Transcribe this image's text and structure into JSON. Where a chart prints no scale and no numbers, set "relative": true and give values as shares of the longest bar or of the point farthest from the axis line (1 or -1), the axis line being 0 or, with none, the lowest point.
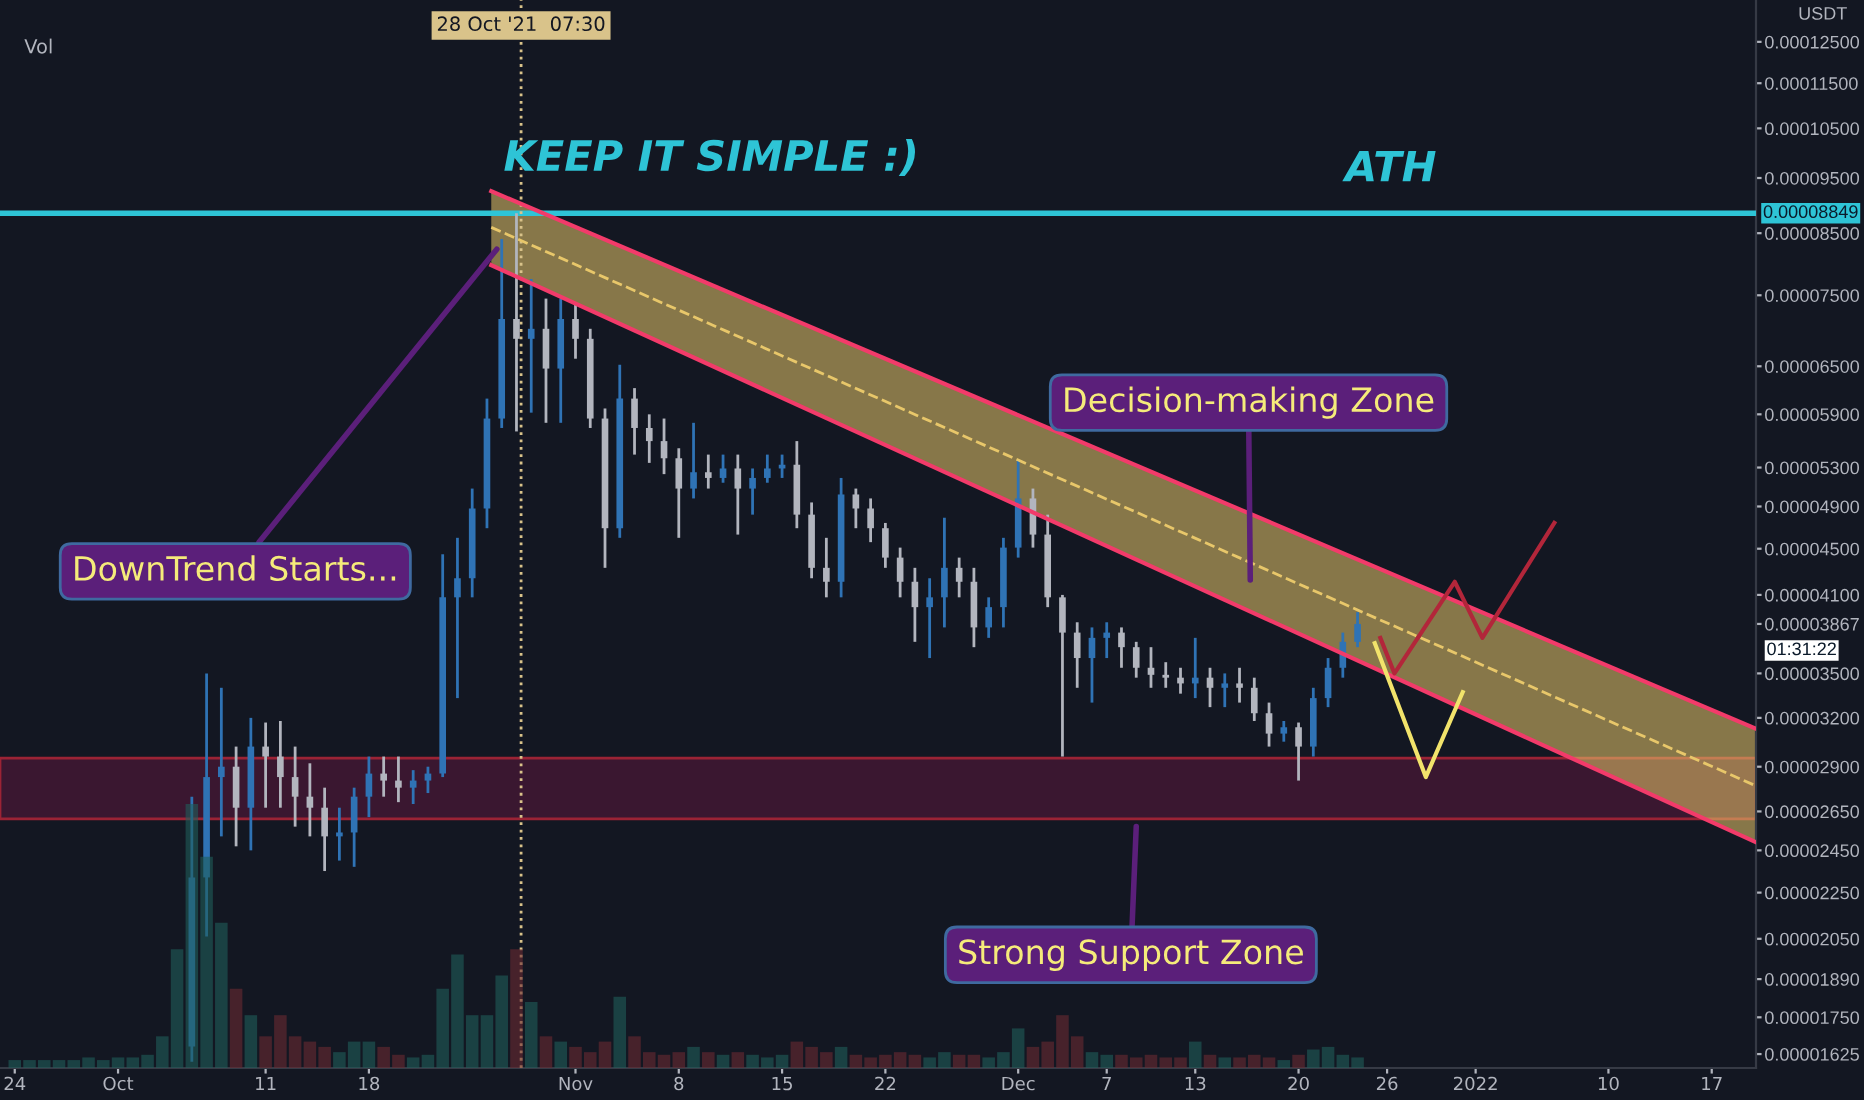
{
  "chart_data": [
    {
      "type": "candlestick",
      "log": true,
      "ylabel": "USDT",
      "xlim": [
        "2021-09-23",
        "2022-01-20"
      ],
      "ylim": [
        1.58e-05,
        0.000136
      ],
      "xticks": [
        {
          "value": "2021-09-24",
          "label": "24"
        },
        {
          "value": "2021-10-01",
          "label": "Oct"
        },
        {
          "value": "2021-10-11",
          "label": "11"
        },
        {
          "value": "2021-10-18",
          "label": "18"
        },
        {
          "value": "2021-11-01",
          "label": "Nov"
        },
        {
          "value": "2021-11-08",
          "label": "8"
        },
        {
          "value": "2021-11-15",
          "label": "15"
        },
        {
          "value": "2021-11-22",
          "label": "22"
        },
        {
          "value": "2021-12-01",
          "label": "Dec"
        },
        {
          "value": "2021-12-07",
          "label": "7"
        },
        {
          "value": "2021-12-13",
          "label": "13"
        },
        {
          "value": "2021-12-20",
          "label": "20"
        },
        {
          "value": "2021-12-26",
          "label": "26"
        },
        {
          "value": "2022-01-01",
          "label": "2022"
        },
        {
          "value": "2022-01-10",
          "label": "10"
        },
        {
          "value": "2022-01-17",
          "label": "17"
        }
      ],
      "yticks": [
        {
          "value": 1.625e-05,
          "label": "0.00001625"
        },
        {
          "value": 1.75e-05,
          "label": "0.00001750"
        },
        {
          "value": 1.89e-05,
          "label": "0.00001890"
        },
        {
          "value": 2.05e-05,
          "label": "0.00002050"
        },
        {
          "value": 2.25e-05,
          "label": "0.00002250"
        },
        {
          "value": 2.45e-05,
          "label": "0.00002450"
        },
        {
          "value": 2.65e-05,
          "label": "0.00002650"
        },
        {
          "value": 2.9e-05,
          "label": "0.00002900"
        },
        {
          "value": 3.2e-05,
          "label": "0.00003200"
        },
        {
          "value": 3.5e-05,
          "label": "0.00003500"
        },
        {
          "value": 3.867e-05,
          "label": "0.00003867"
        },
        {
          "value": 4.1e-05,
          "label": "0.00004100"
        },
        {
          "value": 4.5e-05,
          "label": "0.00004500"
        },
        {
          "value": 4.9e-05,
          "label": "0.00004900"
        },
        {
          "value": 5.3e-05,
          "label": "0.00005300"
        },
        {
          "value": 5.9e-05,
          "label": "0.00005900"
        },
        {
          "value": 6.5e-05,
          "label": "0.00006500"
        },
        {
          "value": 7.5e-05,
          "label": "0.00007500"
        },
        {
          "value": 8.5e-05,
          "label": "0.00008500"
        },
        {
          "value": 9.5e-05,
          "label": "0.00009500"
        },
        {
          "value": 0.000105,
          "label": "0.00010500"
        },
        {
          "value": 0.000115,
          "label": "0.00011500"
        },
        {
          "value": 0.000125,
          "label": "0.00012500"
        }
      ],
      "x": [
        "2021-10-06",
        "2021-10-07",
        "2021-10-08",
        "2021-10-09",
        "2021-10-10",
        "2021-10-11",
        "2021-10-12",
        "2021-10-13",
        "2021-10-14",
        "2021-10-15",
        "2021-10-16",
        "2021-10-17",
        "2021-10-18",
        "2021-10-19",
        "2021-10-20",
        "2021-10-21",
        "2021-10-22",
        "2021-10-23",
        "2021-10-24",
        "2021-10-25",
        "2021-10-26",
        "2021-10-27",
        "2021-10-28",
        "2021-10-29",
        "2021-10-30",
        "2021-10-31",
        "2021-11-01",
        "2021-11-02",
        "2021-11-03",
        "2021-11-04",
        "2021-11-05",
        "2021-11-06",
        "2021-11-07",
        "2021-11-08",
        "2021-11-09",
        "2021-11-10",
        "2021-11-11",
        "2021-11-12",
        "2021-11-13",
        "2021-11-14",
        "2021-11-15",
        "2021-11-16",
        "2021-11-17",
        "2021-11-18",
        "2021-11-19",
        "2021-11-20",
        "2021-11-21",
        "2021-11-22",
        "2021-11-23",
        "2021-11-24",
        "2021-11-25",
        "2021-11-26",
        "2021-11-27",
        "2021-11-28",
        "2021-11-29",
        "2021-11-30",
        "2021-12-01",
        "2021-12-02",
        "2021-12-03",
        "2021-12-04",
        "2021-12-05",
        "2021-12-06",
        "2021-12-07",
        "2021-12-08",
        "2021-12-09",
        "2021-12-10",
        "2021-12-11",
        "2021-12-12",
        "2021-12-13",
        "2021-12-14",
        "2021-12-15",
        "2021-12-16",
        "2021-12-17",
        "2021-12-18",
        "2021-12-19",
        "2021-12-20",
        "2021-12-21",
        "2021-12-22",
        "2021-12-23",
        "2021-12-24"
      ],
      "ohlc": [
        [
          1.65e-05,
          2.73e-05,
          1.6e-05,
          2.32e-05
        ],
        [
          2.32e-05,
          3.5e-05,
          2.06e-05,
          2.84e-05
        ],
        [
          2.84e-05,
          3.4e-05,
          2.52e-05,
          2.9e-05
        ],
        [
          2.9e-05,
          3.02e-05,
          2.47e-05,
          2.67e-05
        ],
        [
          2.67e-05,
          3.2e-05,
          2.45e-05,
          3.02e-05
        ],
        [
          3.02e-05,
          3.17e-05,
          2.67e-05,
          2.96e-05
        ],
        [
          2.96e-05,
          3.18e-05,
          2.67e-05,
          2.84e-05
        ],
        [
          2.84e-05,
          3.02e-05,
          2.57e-05,
          2.73e-05
        ],
        [
          2.73e-05,
          2.92e-05,
          2.52e-05,
          2.67e-05
        ],
        [
          2.67e-05,
          2.78e-05,
          2.35e-05,
          2.52e-05
        ],
        [
          2.52e-05,
          2.67e-05,
          2.4e-05,
          2.54e-05
        ],
        [
          2.54e-05,
          2.78e-05,
          2.37e-05,
          2.73e-05
        ],
        [
          2.73e-05,
          2.96e-05,
          2.62e-05,
          2.86e-05
        ],
        [
          2.86e-05,
          2.96e-05,
          2.73e-05,
          2.82e-05
        ],
        [
          2.82e-05,
          2.96e-05,
          2.7e-05,
          2.78e-05
        ],
        [
          2.78e-05,
          2.88e-05,
          2.69e-05,
          2.82e-05
        ],
        [
          2.82e-05,
          2.9e-05,
          2.75e-05,
          2.86e-05
        ],
        [
          2.86e-05,
          4.45e-05,
          2.84e-05,
          4.08e-05
        ],
        [
          4.08e-05,
          4.6e-05,
          3.33e-05,
          4.24e-05
        ],
        [
          4.24e-05,
          5.08e-05,
          4.08e-05,
          4.88e-05
        ],
        [
          4.88e-05,
          6.09e-05,
          4.69e-05,
          5.85e-05
        ],
        [
          5.85e-05,
          8.4e-05,
          5.74e-05,
          7.15e-05
        ],
        [
          7.15e-05,
          8.849e-05,
          5.7e-05,
          6.87e-05
        ],
        [
          6.87e-05,
          7.75e-05,
          5.92e-05,
          7.01e-05
        ],
        [
          7.01e-05,
          7.45e-05,
          5.8e-05,
          6.47e-05
        ],
        [
          6.47e-05,
          7.45e-05,
          5.8e-05,
          7.15e-05
        ],
        [
          7.15e-05,
          7.39e-05,
          6.6e-05,
          6.87e-05
        ],
        [
          6.87e-05,
          7.01e-05,
          5.74e-05,
          5.85e-05
        ],
        [
          5.85e-05,
          5.97e-05,
          4.33e-05,
          4.69e-05
        ],
        [
          4.69e-05,
          6.52e-05,
          4.6e-05,
          6.09e-05
        ],
        [
          6.09e-05,
          6.22e-05,
          5.44e-05,
          5.74e-05
        ],
        [
          5.74e-05,
          5.9e-05,
          5.35e-05,
          5.59e-05
        ],
        [
          5.59e-05,
          5.85e-05,
          5.23e-05,
          5.4e-05
        ],
        [
          5.4e-05,
          5.51e-05,
          4.6e-05,
          5.08e-05
        ],
        [
          5.08e-05,
          5.8e-05,
          4.98e-05,
          5.25e-05
        ],
        [
          5.25e-05,
          5.44e-05,
          5.08e-05,
          5.19e-05
        ],
        [
          5.19e-05,
          5.44e-05,
          5.14e-05,
          5.29e-05
        ],
        [
          5.29e-05,
          5.44e-05,
          4.63e-05,
          5.08e-05
        ],
        [
          5.08e-05,
          5.29e-05,
          4.82e-05,
          5.19e-05
        ],
        [
          5.19e-05,
          5.44e-05,
          5.14e-05,
          5.29e-05
        ],
        [
          5.29e-05,
          5.44e-05,
          5.19e-05,
          5.33e-05
        ],
        [
          5.33e-05,
          5.59e-05,
          4.69e-05,
          4.82e-05
        ],
        [
          4.82e-05,
          4.94e-05,
          4.24e-05,
          4.33e-05
        ],
        [
          4.33e-05,
          4.6e-05,
          4.08e-05,
          4.21e-05
        ],
        [
          4.21e-05,
          5.19e-05,
          4.08e-05,
          5.02e-05
        ],
        [
          5.02e-05,
          5.08e-05,
          4.69e-05,
          4.88e-05
        ],
        [
          4.88e-05,
          4.98e-05,
          4.56e-05,
          4.69e-05
        ],
        [
          4.69e-05,
          4.74e-05,
          4.33e-05,
          4.42e-05
        ],
        [
          4.42e-05,
          4.51e-05,
          4.08e-05,
          4.21e-05
        ],
        [
          4.21e-05,
          4.33e-05,
          3.73e-05,
          4e-05
        ],
        [
          4e-05,
          4.24e-05,
          3.61e-05,
          4.08e-05
        ],
        [
          4.08e-05,
          4.79e-05,
          3.84e-05,
          4.33e-05
        ],
        [
          4.33e-05,
          4.42e-05,
          4.08e-05,
          4.21e-05
        ],
        [
          4.21e-05,
          4.33e-05,
          3.69e-05,
          3.84e-05
        ],
        [
          3.84e-05,
          4.08e-05,
          3.76e-05,
          4e-05
        ],
        [
          4e-05,
          4.6e-05,
          3.84e-05,
          4.51e-05
        ],
        [
          4.51e-05,
          5.38e-05,
          4.42e-05,
          4.98e-05
        ],
        [
          4.98e-05,
          5.08e-05,
          4.51e-05,
          4.63e-05
        ],
        [
          4.63e-05,
          4.82e-05,
          4e-05,
          4.08e-05
        ],
        [
          4.08e-05,
          4.1e-05,
          2.96e-05,
          3.8e-05
        ],
        [
          3.8e-05,
          3.88e-05,
          3.4e-05,
          3.61e-05
        ],
        [
          3.61e-05,
          3.84e-05,
          3.3e-05,
          3.76e-05
        ],
        [
          3.76e-05,
          3.88e-05,
          3.61e-05,
          3.8e-05
        ],
        [
          3.8e-05,
          3.84e-05,
          3.54e-05,
          3.69e-05
        ],
        [
          3.69e-05,
          3.73e-05,
          3.47e-05,
          3.54e-05
        ],
        [
          3.54e-05,
          3.69e-05,
          3.4e-05,
          3.49e-05
        ],
        [
          3.49e-05,
          3.58e-05,
          3.4e-05,
          3.47e-05
        ],
        [
          3.47e-05,
          3.54e-05,
          3.36e-05,
          3.43e-05
        ],
        [
          3.43e-05,
          3.76e-05,
          3.33e-05,
          3.47e-05
        ],
        [
          3.47e-05,
          3.54e-05,
          3.27e-05,
          3.4e-05
        ],
        [
          3.4e-05,
          3.5e-05,
          3.27e-05,
          3.43e-05
        ],
        [
          3.43e-05,
          3.54e-05,
          3.3e-05,
          3.4e-05
        ],
        [
          3.4e-05,
          3.47e-05,
          3.18e-05,
          3.23e-05
        ],
        [
          3.23e-05,
          3.3e-05,
          3.02e-05,
          3.1e-05
        ],
        [
          3.1e-05,
          3.18e-05,
          3.05e-05,
          3.14e-05
        ],
        [
          3.14e-05,
          3.17e-05,
          2.82e-05,
          3.02e-05
        ],
        [
          3.02e-05,
          3.4e-05,
          2.96e-05,
          3.33e-05
        ],
        [
          3.33e-05,
          3.61e-05,
          3.27e-05,
          3.54e-05
        ],
        [
          3.54e-05,
          3.8e-05,
          3.47e-05,
          3.73e-05
        ],
        [
          3.73e-05,
          3.96e-05,
          3.69e-05,
          3.867e-05
        ]
      ],
      "colors": [
        "#2f73b5",
        "#2f73b5",
        "#2f73b5",
        "#b2b5be",
        "#2f73b5",
        "#b2b5be",
        "#b2b5be",
        "#b2b5be",
        "#b2b5be",
        "#b2b5be",
        "#2f73b5",
        "#2f73b5",
        "#2f73b5",
        "#b2b5be",
        "#b2b5be",
        "#2f73b5",
        "#2f73b5",
        "#2f73b5",
        "#2f73b5",
        "#2f73b5",
        "#2f73b5",
        "#2f73b5",
        "#b2b5be",
        "#2f73b5",
        "#b2b5be",
        "#2f73b5",
        "#b2b5be",
        "#b2b5be",
        "#b2b5be",
        "#2f73b5",
        "#b2b5be",
        "#b2b5be",
        "#b2b5be",
        "#b2b5be",
        "#2f73b5",
        "#b2b5be",
        "#2f73b5",
        "#b2b5be",
        "#2f73b5",
        "#2f73b5",
        "#2f73b5",
        "#b2b5be",
        "#b2b5be",
        "#b2b5be",
        "#2f73b5",
        "#b2b5be",
        "#b2b5be",
        "#b2b5be",
        "#b2b5be",
        "#b2b5be",
        "#2f73b5",
        "#2f73b5",
        "#b2b5be",
        "#b2b5be",
        "#2f73b5",
        "#2f73b5",
        "#2f73b5",
        "#b2b5be",
        "#b2b5be",
        "#b2b5be",
        "#b2b5be",
        "#2f73b5",
        "#2f73b5",
        "#b2b5be",
        "#b2b5be",
        "#b2b5be",
        "#b2b5be",
        "#b2b5be",
        "#2f73b5",
        "#b2b5be",
        "#2f73b5",
        "#b2b5be",
        "#b2b5be",
        "#b2b5be",
        "#2f73b5",
        "#b2b5be",
        "#2f73b5",
        "#2f73b5",
        "#2f73b5",
        "#2f73b5"
      ],
      "series": [
        {
          "type": "line",
          "x": [
            "2021-10-26T07:00",
            "2022-01-20"
          ],
          "values": [
            8.6e-05,
            2.79e-05
          ],
          "lower": [
            7.97e-05,
            2.49e-05
          ],
          "upper": [
            9.25e-05,
            3.13e-05
          ],
          "color": "#e8c76a",
          "line_style": "dashed"
        },
        {
          "type": "line",
          "x": [
            "2021-10-26T07:00",
            "2022-01-20"
          ],
          "values": [
            9.25e-05,
            3.13e-05
          ],
          "color": "#f23b6a",
          "line_style": "solid"
        },
        {
          "type": "line",
          "x": [
            "2021-10-26T07:00",
            "2022-01-20"
          ],
          "values": [
            7.97e-05,
            2.49e-05
          ],
          "color": "#f23b6a",
          "line_style": "solid"
        },
        {
          "type": "line",
          "x": [
            "2021-12-25T13:00",
            "2021-12-26T12:00",
            "2021-12-30T14:00",
            "2022-01-01T11:00",
            "2022-01-06T08:00"
          ],
          "values": [
            3.76e-05,
            3.5e-05,
            4.21e-05,
            3.76e-05,
            4.74e-05
          ],
          "color": "#b2263a",
          "line_style": "solid"
        },
        {
          "type": "line",
          "x": [
            "2021-12-25T04:00",
            "2021-12-28T15:00",
            "2021-12-31T03:00"
          ],
          "values": [
            3.72e-05,
            2.84e-05,
            3.37e-05
          ],
          "color": "#f2e36b",
          "line_style": "solid"
        }
      ],
      "ref_lines": [
        {
          "axis": "y",
          "value": 8.849e-05,
          "label": "0.00008849",
          "color": "#2ec4d6",
          "line_style": "solid"
        },
        {
          "axis": "x",
          "value": "2021-10-28T07:30",
          "label": "28 Oct '21  07:30",
          "color": "#d9c38a",
          "line_style": "dotted"
        }
      ],
      "bands": [
        {
          "axis": "y",
          "from": 2.61e-05,
          "to": 2.95e-05,
          "color": "#3a1730"
        }
      ],
      "annotations": [
        "KEEP IT SIMPLE :)",
        "ATH",
        "Decision-making Zone",
        {
          "text": "DownTrend Starts...",
          "x": "2021-10-26T16:00",
          "y": 8.23e-05
        },
        {
          "text": "Strong Support Zone",
          "x": "2021-12-09",
          "y": 2.57e-05
        },
        "01:31:22"
      ]
    },
    {
      "type": "bar",
      "relative": true,
      "xlim": [
        "2021-09-23",
        "2022-01-20"
      ],
      "x": [
        "2021-09-24",
        "2021-09-25",
        "2021-09-26",
        "2021-09-27",
        "2021-09-28",
        "2021-09-29",
        "2021-09-30",
        "2021-10-01",
        "2021-10-02",
        "2021-10-03",
        "2021-10-04",
        "2021-10-05",
        "2021-10-06",
        "2021-10-07",
        "2021-10-08",
        "2021-10-09",
        "2021-10-10",
        "2021-10-11",
        "2021-10-12",
        "2021-10-13",
        "2021-10-14",
        "2021-10-15",
        "2021-10-16",
        "2021-10-17",
        "2021-10-18",
        "2021-10-19",
        "2021-10-20",
        "2021-10-21",
        "2021-10-22",
        "2021-10-23",
        "2021-10-24",
        "2021-10-25",
        "2021-10-26",
        "2021-10-27",
        "2021-10-28",
        "2021-10-29",
        "2021-10-30",
        "2021-10-31",
        "2021-11-01",
        "2021-11-02",
        "2021-11-03",
        "2021-11-04",
        "2021-11-05",
        "2021-11-06",
        "2021-11-07",
        "2021-11-08",
        "2021-11-09",
        "2021-11-10",
        "2021-11-11",
        "2021-11-12",
        "2021-11-13",
        "2021-11-14",
        "2021-11-15",
        "2021-11-16",
        "2021-11-17",
        "2021-11-18",
        "2021-11-19",
        "2021-11-20",
        "2021-11-21",
        "2021-11-22",
        "2021-11-23",
        "2021-11-24",
        "2021-11-25",
        "2021-11-26",
        "2021-11-27",
        "2021-11-28",
        "2021-11-29",
        "2021-11-30",
        "2021-12-01",
        "2021-12-02",
        "2021-12-03",
        "2021-12-04",
        "2021-12-05",
        "2021-12-06",
        "2021-12-07",
        "2021-12-08",
        "2021-12-09",
        "2021-12-10",
        "2021-12-11",
        "2021-12-12",
        "2021-12-13",
        "2021-12-14",
        "2021-12-15",
        "2021-12-16",
        "2021-12-17",
        "2021-12-18",
        "2021-12-19",
        "2021-12-20",
        "2021-12-21",
        "2021-12-22",
        "2021-12-23",
        "2021-12-24"
      ],
      "values": [
        0.03,
        0.03,
        0.03,
        0.03,
        0.03,
        0.04,
        0.03,
        0.04,
        0.04,
        0.05,
        0.12,
        0.45,
        1.0,
        0.8,
        0.55,
        0.3,
        0.2,
        0.12,
        0.2,
        0.12,
        0.1,
        0.08,
        0.06,
        0.1,
        0.1,
        0.08,
        0.05,
        0.04,
        0.05,
        0.3,
        0.43,
        0.2,
        0.2,
        0.35,
        0.45,
        0.25,
        0.12,
        0.1,
        0.08,
        0.06,
        0.1,
        0.27,
        0.12,
        0.06,
        0.05,
        0.06,
        0.08,
        0.06,
        0.05,
        0.06,
        0.05,
        0.04,
        0.05,
        0.1,
        0.08,
        0.06,
        0.08,
        0.05,
        0.04,
        0.05,
        0.06,
        0.05,
        0.04,
        0.06,
        0.05,
        0.05,
        0.04,
        0.06,
        0.15,
        0.08,
        0.1,
        0.2,
        0.12,
        0.06,
        0.05,
        0.05,
        0.04,
        0.05,
        0.04,
        0.04,
        0.1,
        0.05,
        0.04,
        0.04,
        0.05,
        0.04,
        0.03,
        0.05,
        0.07,
        0.08,
        0.05,
        0.04
      ],
      "colors": [
        "#1f5d5a",
        "#1f5d5a",
        "#1f5d5a",
        "#1f5d5a",
        "#1f5d5a",
        "#1f5d5a",
        "#1f5d5a",
        "#1f5d5a",
        "#1f5d5a",
        "#1f5d5a",
        "#1f5d5a",
        "#1f5d5a",
        "#1f5d5a",
        "#1f5d5a",
        "#1f5d5a",
        "#6a2a32",
        "#1f5d5a",
        "#6a2a32",
        "#6a2a32",
        "#6a2a32",
        "#6a2a32",
        "#6a2a32",
        "#1f5d5a",
        "#1f5d5a",
        "#1f5d5a",
        "#6a2a32",
        "#6a2a32",
        "#1f5d5a",
        "#1f5d5a",
        "#1f5d5a",
        "#1f5d5a",
        "#1f5d5a",
        "#1f5d5a",
        "#1f5d5a",
        "#6a2a32",
        "#1f5d5a",
        "#6a2a32",
        "#1f5d5a",
        "#6a2a32",
        "#6a2a32",
        "#6a2a32",
        "#1f5d5a",
        "#6a2a32",
        "#6a2a32",
        "#6a2a32",
        "#6a2a32",
        "#1f5d5a",
        "#6a2a32",
        "#1f5d5a",
        "#6a2a32",
        "#1f5d5a",
        "#1f5d5a",
        "#1f5d5a",
        "#6a2a32",
        "#6a2a32",
        "#6a2a32",
        "#1f5d5a",
        "#6a2a32",
        "#6a2a32",
        "#6a2a32",
        "#6a2a32",
        "#6a2a32",
        "#1f5d5a",
        "#1f5d5a",
        "#6a2a32",
        "#6a2a32",
        "#1f5d5a",
        "#1f5d5a",
        "#1f5d5a",
        "#6a2a32",
        "#6a2a32",
        "#6a2a32",
        "#6a2a32",
        "#1f5d5a",
        "#1f5d5a",
        "#6a2a32",
        "#6a2a32",
        "#6a2a32",
        "#6a2a32",
        "#6a2a32",
        "#1f5d5a",
        "#6a2a32",
        "#1f5d5a",
        "#6a2a32",
        "#6a2a32",
        "#6a2a32",
        "#1f5d5a",
        "#6a2a32",
        "#1f5d5a",
        "#1f5d5a",
        "#1f5d5a",
        "#1f5d5a"
      ],
      "annotations": [
        "Vol"
      ]
    }
  ]
}
